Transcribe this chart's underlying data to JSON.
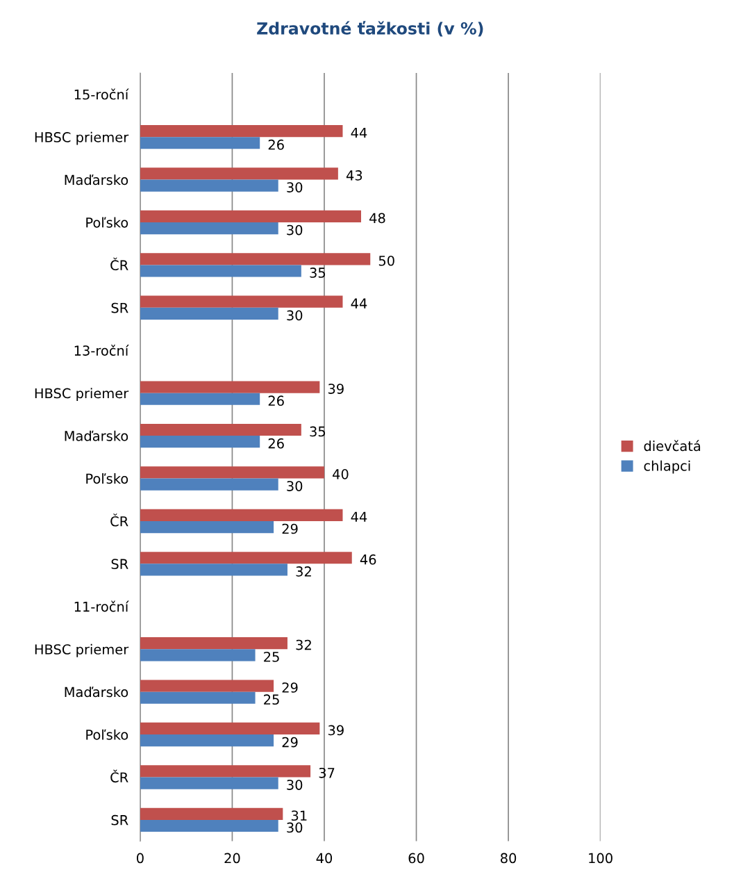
{
  "chart_data": {
    "type": "bar",
    "orientation": "horizontal",
    "title": "Zdravotné ťažkosti (v %)",
    "categories": [
      "15-roční",
      "HBSC priemer",
      "Maďarsko",
      "Poľsko",
      "ČR",
      "SR",
      "13-roční",
      "HBSC priemer",
      "Maďarsko",
      "Poľsko",
      "ČR",
      "SR",
      "11-roční",
      "HBSC priemer",
      "Maďarsko",
      "Poľsko",
      "ČR",
      "SR"
    ],
    "series": [
      {
        "name": "dievčatá",
        "color": "#c0504d",
        "values": [
          null,
          44,
          43,
          48,
          50,
          44,
          null,
          39,
          35,
          40,
          44,
          46,
          null,
          32,
          29,
          39,
          37,
          31
        ]
      },
      {
        "name": "chlapci",
        "color": "#4f81bd",
        "values": [
          null,
          26,
          30,
          30,
          35,
          30,
          null,
          26,
          26,
          30,
          29,
          32,
          null,
          25,
          25,
          29,
          30,
          30
        ]
      }
    ],
    "xlim": [
      0,
      100
    ],
    "xticks": [
      0,
      20,
      40,
      60,
      80,
      100
    ],
    "grid": "x",
    "legend": "right",
    "data_labels": true
  }
}
